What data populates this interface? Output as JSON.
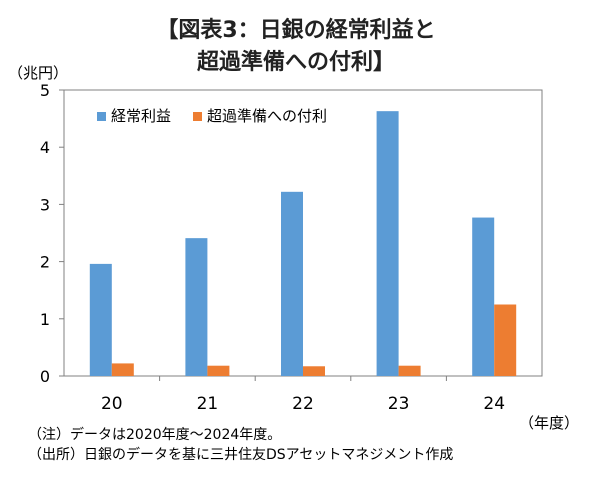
{
  "title_line1": "【図表3：日銀の経常利益と",
  "title_line2": "超過準備への付利】",
  "y_unit": "（兆円）",
  "x_unit": "（年度）",
  "note1": "（注）データは2020年度～2024年度。",
  "note2": "（出所）日銀のデータを基に三井住友DSアセットマネジメント作成",
  "chart_data": {
    "type": "bar",
    "categories": [
      "20",
      "21",
      "22",
      "23",
      "24"
    ],
    "series": [
      {
        "name": "経常利益",
        "values": [
          1.96,
          2.41,
          3.22,
          4.63,
          2.77
        ],
        "color": "#5b9bd5"
      },
      {
        "name": "超過準備への付利",
        "values": [
          0.22,
          0.18,
          0.17,
          0.18,
          1.25
        ],
        "color": "#ed7d31"
      }
    ],
    "yticks": [
      "0",
      "1",
      "2",
      "3",
      "4",
      "5"
    ],
    "ylim": [
      0,
      5
    ],
    "grid": false,
    "legend": "top-left"
  }
}
